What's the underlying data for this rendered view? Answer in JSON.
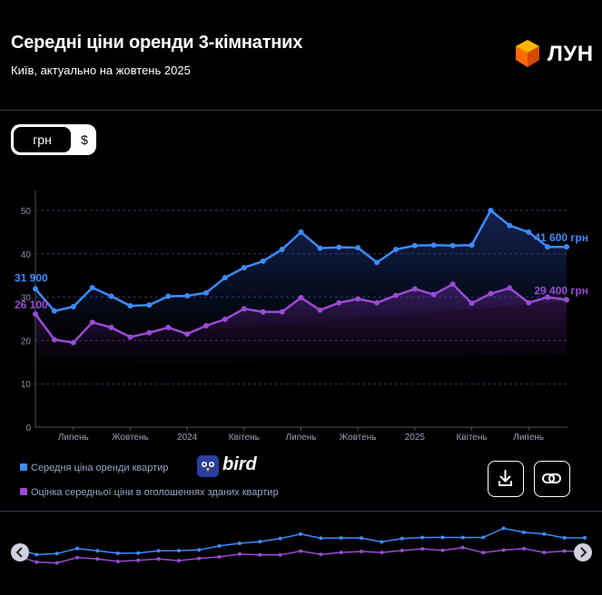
{
  "header": {
    "title": "Середні ціни оренди 3-кімнатних",
    "subtitle": "Київ, актуально на жовтень 2025",
    "brand": "ЛУН",
    "brand_color": "#ff6a00"
  },
  "currency_toggle": {
    "options": [
      "грн",
      "$"
    ],
    "selected": "грн"
  },
  "legend": {
    "items": [
      {
        "label": "Середня ціна оренди квартир",
        "color": "#3d8bff"
      },
      {
        "label": "Оцінка середньої ціни в оголошеннях зданих квартир",
        "color": "#9b4ad6"
      }
    ],
    "partner": "bird"
  },
  "actions": {
    "download_icon": "download-icon",
    "link_icon": "link-icon"
  },
  "navigator": {
    "left_icon": "chevron-left-icon",
    "right_icon": "chevron-right-icon"
  },
  "chart_data": {
    "type": "line",
    "yticks": [
      0,
      10,
      20,
      30,
      40,
      50
    ],
    "ylim": [
      0,
      55
    ],
    "x_tick_labels": [
      "Липень",
      "Жовтень",
      "2024",
      "Квітень",
      "Липень",
      "Жовтень",
      "2025",
      "Квітень",
      "Липень"
    ],
    "x_tick_indices": [
      2,
      5,
      8,
      11,
      14,
      17,
      20,
      23,
      26
    ],
    "series": [
      {
        "name": "Середня ціна оренди квартир",
        "color": "#3d8bff",
        "values": [
          31.9,
          26.8,
          27.8,
          32.2,
          30.2,
          28.0,
          28.2,
          30.2,
          30.3,
          31.0,
          34.5,
          36.8,
          38.3,
          41.0,
          45.0,
          41.3,
          41.5,
          41.4,
          38.0,
          41.0,
          41.9,
          42.0,
          41.9,
          42.0,
          50.0,
          46.5,
          45.0,
          41.6,
          41.6
        ],
        "first_label": "31 900",
        "last_label": "41 600 грн"
      },
      {
        "name": "Оцінка середньої ціни в оголошеннях зданих квартир",
        "color": "#9b4ad6",
        "values": [
          26.1,
          20.2,
          19.5,
          24.2,
          23.0,
          20.8,
          21.8,
          23.0,
          21.5,
          23.4,
          24.9,
          27.3,
          26.6,
          26.6,
          29.9,
          27.0,
          28.7,
          29.6,
          28.7,
          30.4,
          31.9,
          30.6,
          33.0,
          28.6,
          30.8,
          32.1,
          28.7,
          30.0,
          29.4
        ],
        "first_label": "26 100",
        "last_label": "29 400 грн"
      }
    ]
  }
}
